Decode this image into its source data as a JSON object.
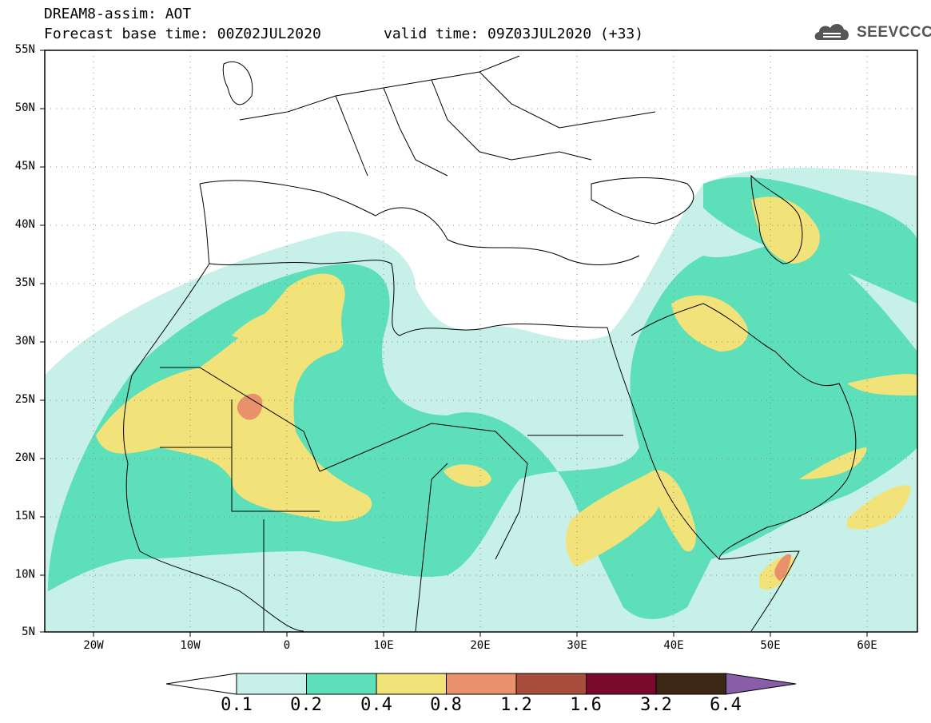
{
  "header": {
    "title_line1": "DREAM8-assim: AOT",
    "title_line2": "Forecast base time: 00Z02JUL2020",
    "valid_time": "valid time: 09Z03JUL2020 (+33)",
    "logo_text": "SEEVCCC",
    "logo_icon": "cloud-icon"
  },
  "map": {
    "projection": "lat-lon",
    "lon_range": [
      -25,
      65
    ],
    "lat_range": [
      5,
      55
    ],
    "lat_labels": [
      "55N",
      "50N",
      "45N",
      "40N",
      "35N",
      "30N",
      "25N",
      "20N",
      "15N",
      "10N",
      "5N"
    ],
    "lon_labels": [
      "20W",
      "10W",
      "0",
      "10E",
      "20E",
      "30E",
      "40E",
      "50E",
      "60E"
    ],
    "grid": "dotted"
  },
  "colorbar": {
    "labels": [
      "0.1",
      "0.2",
      "0.4",
      "0.8",
      "1.2",
      "1.6",
      "3.2",
      "6.4"
    ],
    "colors": [
      "#c6f0e8",
      "#5ddfb9",
      "#f2e27a",
      "#e8916a",
      "#a84c3c",
      "#7a0a2c",
      "#3d2614",
      "#8a5da8"
    ]
  }
}
